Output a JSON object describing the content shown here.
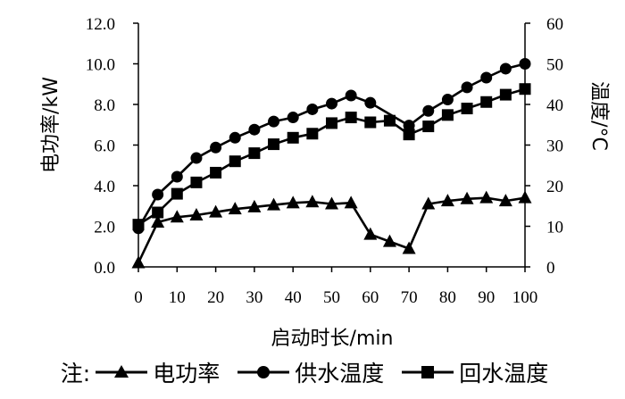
{
  "chart_data": {
    "type": "line",
    "x": [
      0,
      5,
      10,
      15,
      20,
      25,
      30,
      35,
      40,
      45,
      50,
      55,
      60,
      65,
      70,
      75,
      80,
      85,
      90,
      95,
      100
    ],
    "xlabel": "启动时长/min",
    "ylabel_left": "电功率/kW",
    "ylabel_right": "温度/°C",
    "ylim_left": [
      0,
      12
    ],
    "ylim_right": [
      0,
      60
    ],
    "xticks": [
      "0",
      "10",
      "20",
      "30",
      "40",
      "50",
      "60",
      "70",
      "80",
      "90",
      "100"
    ],
    "yticks_left": [
      "0.0",
      "2.0",
      "4.0",
      "6.0",
      "8.0",
      "10.0",
      "12.0"
    ],
    "yticks_right": [
      "0",
      "10",
      "20",
      "30",
      "40",
      "50",
      "60"
    ],
    "grid": false,
    "legend_position": "bottom",
    "series": [
      {
        "name": "电功率",
        "axis": "left",
        "marker": "triangle",
        "values": [
          0.2,
          2.2,
          2.45,
          2.55,
          2.7,
          2.85,
          2.95,
          3.05,
          3.15,
          3.2,
          3.1,
          3.15,
          1.6,
          1.25,
          0.9,
          3.1,
          3.25,
          3.35,
          3.4,
          3.25,
          3.4
        ]
      },
      {
        "name": "供水温度",
        "axis": "right",
        "marker": "circle",
        "values": [
          9.5,
          17.8,
          22.2,
          26.8,
          29.4,
          31.8,
          33.8,
          35.8,
          36.8,
          38.8,
          40.2,
          42.2,
          40.4,
          null,
          34.8,
          38.4,
          41.2,
          44.2,
          46.6,
          48.8,
          50.0
        ]
      },
      {
        "name": "回水温度",
        "axis": "right",
        "marker": "square",
        "values": [
          10.4,
          13.4,
          18.0,
          20.8,
          23.2,
          26.0,
          28.0,
          30.2,
          31.8,
          32.8,
          35.4,
          36.8,
          35.6,
          36.0,
          32.6,
          34.6,
          37.4,
          39.0,
          40.6,
          42.4,
          43.8
        ]
      }
    ]
  },
  "legend": {
    "prefix": "注:",
    "items": [
      "电功率",
      "供水温度",
      "回水温度"
    ]
  },
  "colors": {
    "ink": "#000000",
    "background": "#ffffff"
  }
}
